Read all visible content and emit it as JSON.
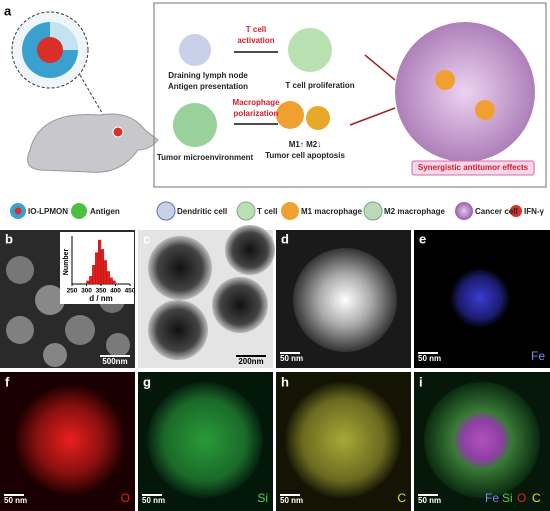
{
  "panel_a": {
    "letter": "a",
    "t_cell_activation": [
      "T cell",
      "activation"
    ],
    "lymph_node": [
      "Draining lymph node",
      "Antigen presentation"
    ],
    "t_cell_proliferation": "T cell proliferation",
    "macrophage_polarization": [
      "Macrophage",
      "polarization"
    ],
    "tumor_microenvironment": "Tumor microenvironment",
    "macrophage_shift": "M1↑ M2↓",
    "apoptosis": "Tumor cell apoptosis",
    "synergy": "Synergistic antitumor effects"
  },
  "legend": [
    "IO-LPMON",
    "Antigen",
    "Dendritic cell",
    "T cell",
    "M1 macrophage",
    "M2 macrophage",
    "Cancer cell",
    "IFN-γ"
  ],
  "panel_b": {
    "letter": "b",
    "scale_bar": "500nm",
    "histogram": {
      "ylabel": "Number",
      "xlabel": "d / nm",
      "xlim": [
        250,
        450
      ],
      "xticks": [
        250,
        300,
        350,
        400,
        450
      ],
      "bins": [
        300,
        310,
        320,
        330,
        340,
        350,
        360,
        370,
        380,
        390,
        400
      ],
      "counts": [
        2,
        5,
        12,
        20,
        28,
        22,
        15,
        8,
        4,
        2
      ],
      "color": "#e0201c"
    }
  },
  "panel_c": {
    "letter": "c",
    "scale_bar": "200nm"
  },
  "panel_d": {
    "letter": "d",
    "scale_bar": "50 nm"
  },
  "panel_e": {
    "letter": "e",
    "scale_bar": "50 nm",
    "element": "Fe"
  },
  "panel_f": {
    "letter": "f",
    "scale_bar": "50 nm",
    "element": "O"
  },
  "panel_g": {
    "letter": "g",
    "scale_bar": "50 nm",
    "element": "Si"
  },
  "panel_h": {
    "letter": "h",
    "scale_bar": "50 nm",
    "element": "C"
  },
  "panel_i": {
    "letter": "i",
    "scale_bar": "50 nm",
    "elements": [
      "Fe",
      "Si",
      "O",
      "C"
    ]
  }
}
